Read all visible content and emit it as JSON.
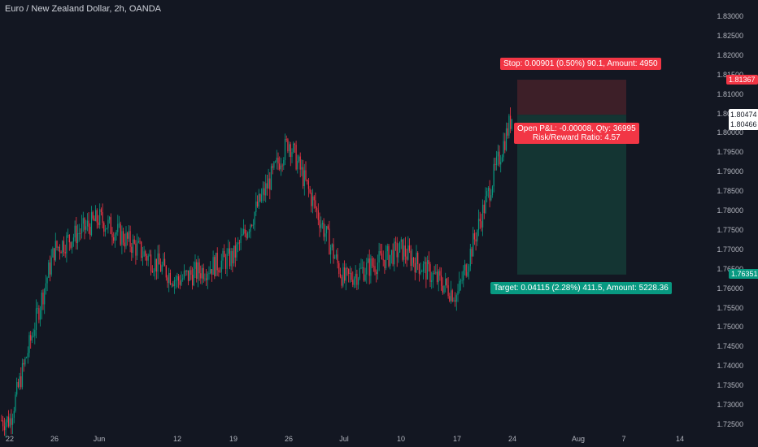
{
  "header": {
    "title": "Euro / New Zealand Dollar, 2h, OANDA"
  },
  "price_axis": {
    "labels": [
      "1.83000",
      "1.82500",
      "1.82000",
      "1.81500",
      "1.81000",
      "1.80500",
      "1.80000",
      "1.79500",
      "1.79000",
      "1.78500",
      "1.78000",
      "1.77500",
      "1.77000",
      "1.76500",
      "1.76000",
      "1.75500",
      "1.75000",
      "1.74500",
      "1.74000",
      "1.73500",
      "1.73000",
      "1.72500"
    ],
    "stop_badge": "1.81367",
    "current_price": "1.80474",
    "current_price_2": "1.80466",
    "target_badge": "1.76351"
  },
  "time_axis": {
    "labels": [
      "22",
      "26",
      "Jun",
      "12",
      "19",
      "26",
      "Jul",
      "10",
      "17",
      "24",
      "Aug",
      "7",
      "14"
    ]
  },
  "position_tool": {
    "stop_text": "Stop: 0.00901 (0.50%) 90.1, Amount: 4950",
    "pnl_text": "Open P&L: -0.00008, Qty: 36995",
    "rr_text": "Risk/Reward Ratio: 4.57",
    "target_text": "Target: 0.04115 (2.28%) 411.5, Amount: 5228.36"
  },
  "colors": {
    "background": "#131722",
    "up": "#089981",
    "down": "#f23645",
    "stop_zone": "#3d1f28",
    "target_zone": "#143533"
  },
  "chart_data": {
    "type": "candlestick",
    "symbol": "EURNZD",
    "interval": "2h",
    "close_path": [
      [
        "22",
        1.726
      ],
      [
        "26",
        1.77
      ],
      [
        "Jun",
        1.778
      ],
      [
        "12",
        1.762
      ],
      [
        "19",
        1.768
      ],
      [
        "26",
        1.798
      ],
      [
        "Jul",
        1.762
      ],
      [
        "10",
        1.77
      ],
      [
        "17",
        1.758
      ],
      [
        "24",
        1.8047
      ]
    ],
    "entry": 1.80466,
    "stop": 1.81367,
    "target": 1.76351
  }
}
